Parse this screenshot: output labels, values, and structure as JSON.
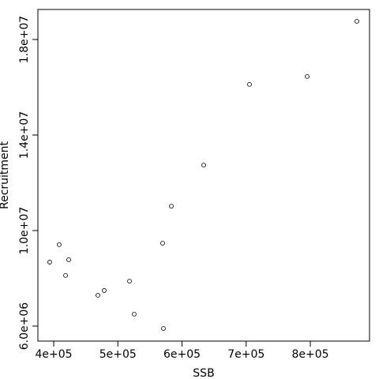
{
  "chart_data": {
    "type": "scatter",
    "x_label": "SSB",
    "y_label": "Recruitment",
    "x": [
      872600,
      705200,
      795100,
      633800,
      583400,
      569800,
      408600,
      393800,
      423400,
      418500,
      518200,
      478800,
      468900,
      525500,
      571100
    ],
    "y": [
      18760000,
      16120000,
      16450000,
      12740000,
      11020000,
      9470000,
      9410000,
      8680000,
      8780000,
      8120000,
      7880000,
      7490000,
      7290000,
      6500000,
      5900000
    ],
    "color": "#000000",
    "xlim": [
      375400,
      892250
    ],
    "ylim": [
      5372000,
      19256000
    ],
    "xticks": [
      {
        "value": 400000,
        "label": "4e+05"
      },
      {
        "value": 500000,
        "label": "5e+05"
      },
      {
        "value": 600000,
        "label": "6e+05"
      },
      {
        "value": 700000,
        "label": "7e+05"
      },
      {
        "value": 800000,
        "label": "8e+05"
      }
    ],
    "yticks": [
      {
        "value": 6000000,
        "label": "6.0e+06"
      },
      {
        "value": 10000000,
        "label": "1.0e+07"
      },
      {
        "value": 14000000,
        "label": "1.4e+07"
      },
      {
        "value": 18000000,
        "label": "1.8e+07"
      }
    ]
  }
}
